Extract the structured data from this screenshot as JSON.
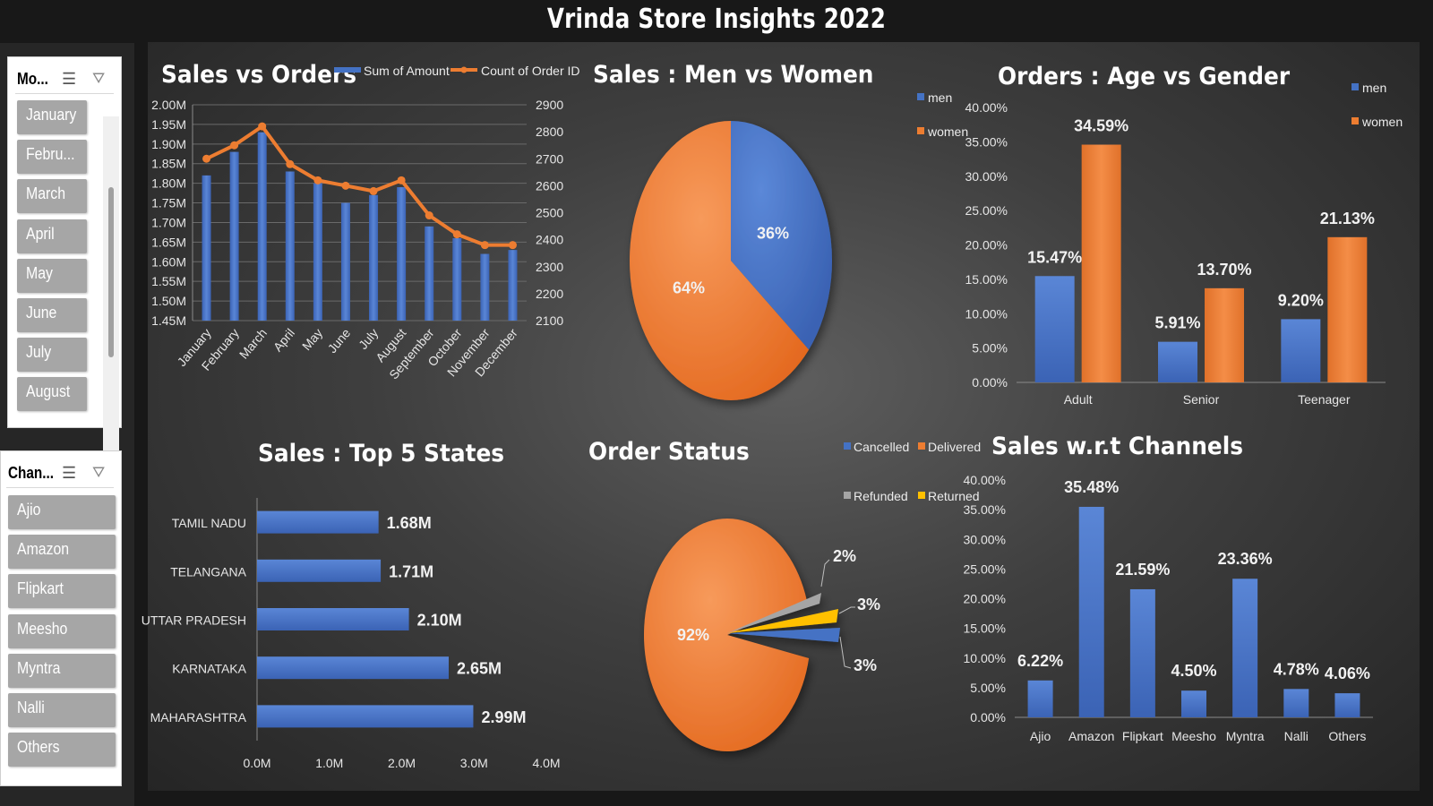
{
  "page_title": "Vrinda Store Insights 2022",
  "colors": {
    "blue": "#4472C4",
    "orange": "#ED7D31",
    "gray": "#A5A5A5",
    "yellow": "#FFC000"
  },
  "slicers": {
    "month": {
      "title": "Mo...",
      "multi_select_icon": "multi-select-icon",
      "clear_filter_icon": "clear-filter-icon",
      "items": [
        "January",
        "Febru...",
        "March",
        "April",
        "May",
        "June",
        "July",
        "August"
      ]
    },
    "channel": {
      "title": "Chan...",
      "multi_select_icon": "multi-select-icon",
      "clear_filter_icon": "clear-filter-icon",
      "items": [
        "Ajio",
        "Amazon",
        "Flipkart",
        "Meesho",
        "Myntra",
        "Nalli",
        "Others"
      ]
    }
  },
  "chart_data": [
    {
      "id": "sales_vs_orders",
      "type": "bar+line",
      "title": "Sales vs Orders",
      "categories": [
        "January",
        "February",
        "March",
        "April",
        "May",
        "June",
        "July",
        "August",
        "September",
        "October",
        "November",
        "December"
      ],
      "series": [
        {
          "name": "Sum of Amount",
          "type": "bar",
          "axis": "left",
          "values": [
            1.82,
            1.88,
            1.93,
            1.83,
            1.8,
            1.75,
            1.77,
            1.79,
            1.69,
            1.66,
            1.62,
            1.63
          ]
        },
        {
          "name": "Count of Order ID",
          "type": "line",
          "axis": "right",
          "values": [
            2700,
            2750,
            2820,
            2680,
            2620,
            2600,
            2580,
            2620,
            2490,
            2420,
            2380,
            2380
          ]
        }
      ],
      "y_left_ticks": [
        "2.00M",
        "1.95M",
        "1.90M",
        "1.85M",
        "1.80M",
        "1.75M",
        "1.70M",
        "1.65M",
        "1.60M",
        "1.55M",
        "1.50M",
        "1.45M"
      ],
      "y_right_ticks": [
        "2900",
        "2800",
        "2700",
        "2600",
        "2500",
        "2400",
        "2300",
        "2200",
        "2100"
      ],
      "ylim_left": [
        1.45,
        2.0
      ],
      "ylim_right": [
        2100,
        2900
      ],
      "legend": "top",
      "grid": true
    },
    {
      "id": "sales_men_women",
      "type": "pie",
      "title": "Sales : Men vs Women",
      "labels": [
        "men",
        "women"
      ],
      "values": [
        36,
        64
      ],
      "value_labels": [
        "36%",
        "64%"
      ],
      "legend": "top-right"
    },
    {
      "id": "orders_age_gender",
      "type": "bar",
      "title": "Orders : Age vs Gender",
      "categories": [
        "Adult",
        "Senior",
        "Teenager"
      ],
      "series": [
        {
          "name": "men",
          "values": [
            15.47,
            5.91,
            9.2
          ],
          "labels": [
            "15.47%",
            "5.91%",
            "9.20%"
          ]
        },
        {
          "name": "women",
          "values": [
            34.59,
            13.7,
            21.13
          ],
          "labels": [
            "34.59%",
            "13.70%",
            "21.13%"
          ]
        }
      ],
      "y_ticks": [
        "40.00%",
        "35.00%",
        "30.00%",
        "25.00%",
        "20.00%",
        "15.00%",
        "10.00%",
        "5.00%",
        "0.00%"
      ],
      "ylim": [
        0,
        40
      ],
      "legend": "top-right"
    },
    {
      "id": "top5_states",
      "type": "bar",
      "orientation": "horizontal",
      "title": "Sales : Top 5 States",
      "categories": [
        "TAMIL NADU",
        "TELANGANA",
        "UTTAR PRADESH",
        "KARNATAKA",
        "MAHARASHTRA"
      ],
      "values": [
        1.68,
        1.71,
        2.1,
        2.65,
        2.99
      ],
      "labels": [
        "1.68M",
        "1.71M",
        "2.10M",
        "2.65M",
        "2.99M"
      ],
      "x_ticks": [
        "0.0M",
        "1.0M",
        "2.0M",
        "3.0M",
        "4.0M"
      ],
      "xlim": [
        0,
        4
      ]
    },
    {
      "id": "order_status",
      "type": "pie",
      "title": "Order Status",
      "labels": [
        "Delivered",
        "Cancelled",
        "Returned",
        "Refunded"
      ],
      "values": [
        92,
        3,
        3,
        2
      ],
      "value_labels": [
        "92%",
        "3%",
        "3%",
        "2%"
      ],
      "legend_order": [
        "Cancelled",
        "Delivered",
        "Refunded",
        "Returned"
      ],
      "legend": "top-right"
    },
    {
      "id": "sales_channels",
      "type": "bar",
      "title": "Sales w.r.t Channels",
      "categories": [
        "Ajio",
        "Amazon",
        "Flipkart",
        "Meesho",
        "Myntra",
        "Nalli",
        "Others"
      ],
      "values": [
        6.22,
        35.48,
        21.59,
        4.5,
        23.36,
        4.78,
        4.06
      ],
      "labels": [
        "6.22%",
        "35.48%",
        "21.59%",
        "4.50%",
        "23.36%",
        "4.78%",
        "4.06%"
      ],
      "y_ticks": [
        "40.00%",
        "35.00%",
        "30.00%",
        "25.00%",
        "20.00%",
        "15.00%",
        "10.00%",
        "5.00%",
        "0.00%"
      ],
      "ylim": [
        0,
        40
      ]
    }
  ]
}
